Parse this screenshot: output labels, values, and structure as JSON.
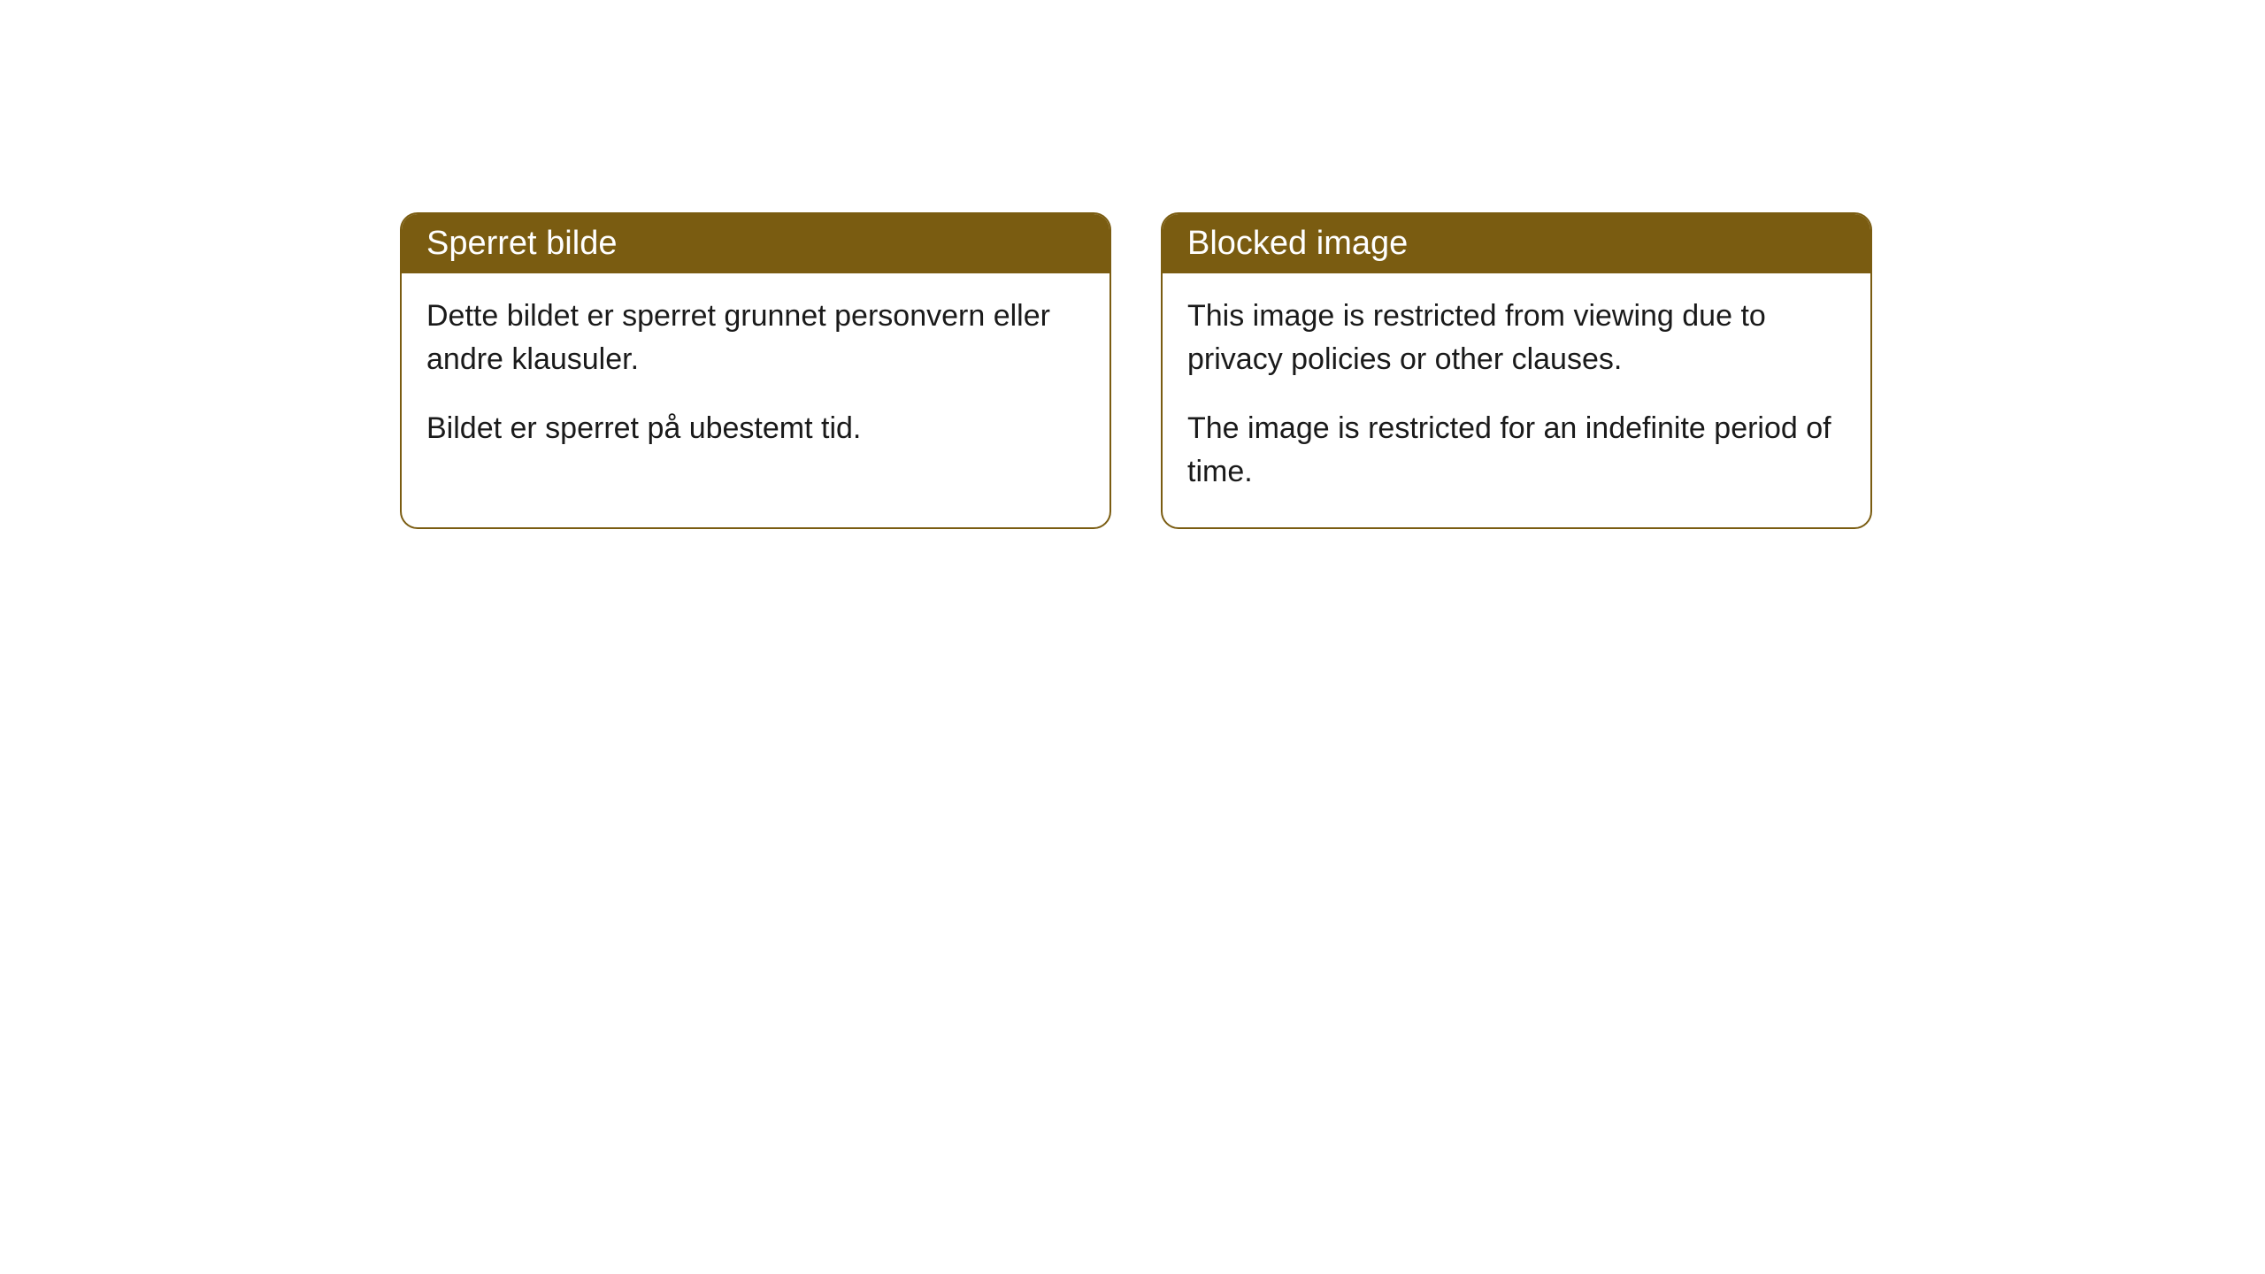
{
  "cards": [
    {
      "title": "Sperret bilde",
      "paragraph1": "Dette bildet er sperret grunnet personvern eller andre klausuler.",
      "paragraph2": "Bildet er sperret på ubestemt tid."
    },
    {
      "title": "Blocked image",
      "paragraph1": "This image is restricted from viewing due to privacy policies or other clauses.",
      "paragraph2": "The image is restricted for an indefinite period of time."
    }
  ],
  "styling": {
    "header_bg_color": "#7a5c11",
    "header_text_color": "#ffffff",
    "border_color": "#7a5c11",
    "body_text_color": "#1a1a1a",
    "background_color": "#ffffff",
    "border_radius": 20,
    "header_fontsize": 38,
    "body_fontsize": 34
  }
}
